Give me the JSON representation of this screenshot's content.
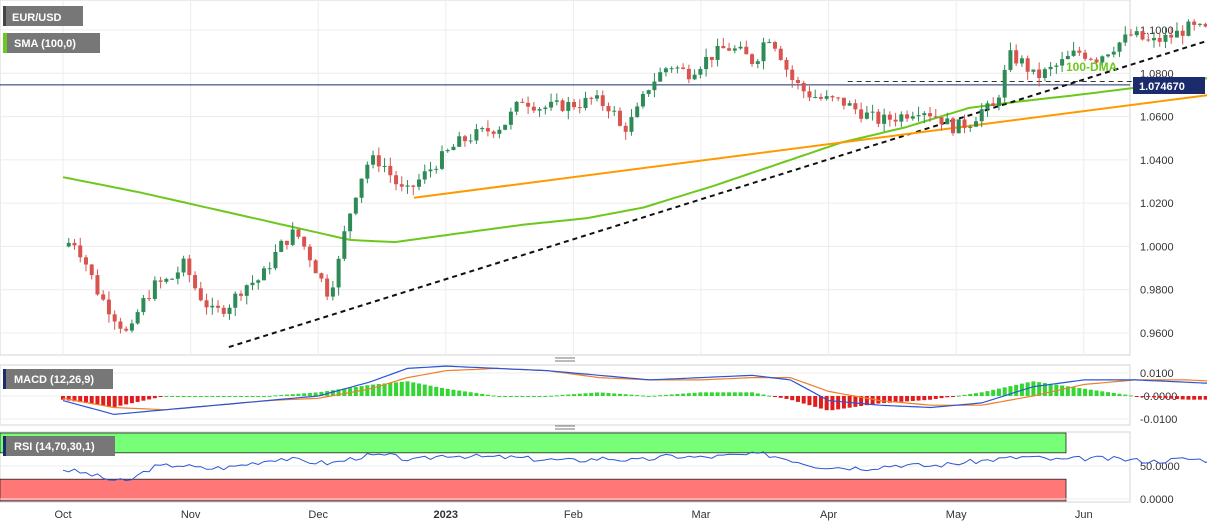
{
  "chart_data": {
    "type": "candlestick",
    "symbol": "EUR/USD",
    "last_price": "1.074670",
    "x_tick_labels": [
      "Oct",
      "Nov",
      "Dec",
      "2023",
      "Feb",
      "Mar",
      "Apr",
      "May",
      "Jun"
    ],
    "grid": true,
    "price_panel": {
      "ylim": [
        0.95,
        1.11
      ],
      "y_ticks": [
        0.96,
        0.98,
        1.0,
        1.02,
        1.04,
        1.06,
        1.08,
        1.1
      ],
      "y_tick_labels": [
        "0.9600",
        "0.9800",
        "1.0000",
        "1.0200",
        "1.0400",
        "1.0600",
        "1.0800",
        "1.1000"
      ],
      "legend": [
        {
          "label": "EUR/USD",
          "color": "#555555"
        },
        {
          "label": "SMA (100,0)",
          "color": "#6cc81c"
        }
      ],
      "annotations": [
        {
          "text": "100-DMA",
          "color": "#6cc81c"
        }
      ],
      "horizontal_line": {
        "value": 1.07467,
        "color": "#1b2b6b"
      },
      "support_level": {
        "value": 1.0762,
        "style": "dashed"
      },
      "trendlines": [
        {
          "name": "black-dashed-support",
          "style": "dashed",
          "color": "#111111",
          "from": {
            "month": 1.3,
            "value": 0.9535
          },
          "to": {
            "month": 9.05,
            "value": 1.0965
          }
        },
        {
          "name": "orange-support",
          "style": "solid",
          "color": "#ff9900",
          "from": {
            "month": 2.75,
            "value": 1.0225
          },
          "to": {
            "month": 9.05,
            "value": 1.0705
          }
        }
      ],
      "candle_colors": {
        "up": "#2e8b57",
        "down": "#d9534f"
      },
      "candles_price_path": [
        [
          0.0,
          1.0
        ],
        [
          0.08,
          1.003
        ],
        [
          0.16,
          0.995
        ],
        [
          0.28,
          0.978
        ],
        [
          0.4,
          0.968
        ],
        [
          0.52,
          0.958
        ],
        [
          0.6,
          0.972
        ],
        [
          0.72,
          0.982
        ],
        [
          0.85,
          0.985
        ],
        [
          0.95,
          0.992
        ],
        [
          1.05,
          0.979
        ],
        [
          1.18,
          0.969
        ],
        [
          1.3,
          0.973
        ],
        [
          1.42,
          0.982
        ],
        [
          1.55,
          0.985
        ],
        [
          1.7,
          1.0
        ],
        [
          1.82,
          1.007
        ],
        [
          1.92,
          0.997
        ],
        [
          2.02,
          0.985
        ],
        [
          2.08,
          0.978
        ],
        [
          2.15,
          0.99
        ],
        [
          2.22,
          1.01
        ],
        [
          2.32,
          1.03
        ],
        [
          2.4,
          1.04
        ],
        [
          2.5,
          1.039
        ],
        [
          2.6,
          1.03
        ],
        [
          2.68,
          1.024
        ],
        [
          2.78,
          1.03
        ],
        [
          2.95,
          1.04
        ],
        [
          3.1,
          1.048
        ],
        [
          3.25,
          1.052
        ],
        [
          3.45,
          1.056
        ],
        [
          3.6,
          1.068
        ],
        [
          3.75,
          1.064
        ],
        [
          3.9,
          1.065
        ],
        [
          4.05,
          1.066
        ],
        [
          4.15,
          1.068
        ],
        [
          4.3,
          1.064
        ],
        [
          4.38,
          1.053
        ],
        [
          4.48,
          1.06
        ],
        [
          4.6,
          1.075
        ],
        [
          4.75,
          1.084
        ],
        [
          4.9,
          1.08
        ],
        [
          5.05,
          1.087
        ],
        [
          5.2,
          1.092
        ],
        [
          5.3,
          1.09
        ],
        [
          5.42,
          1.085
        ],
        [
          5.52,
          1.098
        ],
        [
          5.6,
          1.092
        ],
        [
          5.7,
          1.078
        ],
        [
          5.82,
          1.071
        ],
        [
          5.95,
          1.068
        ],
        [
          6.1,
          1.067
        ],
        [
          6.25,
          1.062
        ],
        [
          6.4,
          1.058
        ],
        [
          6.55,
          1.06
        ],
        [
          6.72,
          1.064
        ],
        [
          6.85,
          1.06
        ],
        [
          6.98,
          1.055
        ],
        [
          7.1,
          1.057
        ],
        [
          7.2,
          1.063
        ],
        [
          7.3,
          1.064
        ],
        [
          7.42,
          1.088
        ],
        [
          7.52,
          1.085
        ],
        [
          7.62,
          1.078
        ],
        [
          7.78,
          1.083
        ],
        [
          7.95,
          1.09
        ],
        [
          8.1,
          1.087
        ],
        [
          8.25,
          1.093
        ],
        [
          8.38,
          1.098
        ],
        [
          8.52,
          1.094
        ],
        [
          8.68,
          1.097
        ],
        [
          8.82,
          1.101
        ],
        [
          8.95,
          1.1
        ],
        [
          9.08,
          1.095
        ],
        [
          9.2,
          1.098
        ],
        [
          9.35,
          1.094
        ],
        [
          9.5,
          1.088
        ],
        [
          9.6,
          1.085
        ],
        [
          9.72,
          1.082
        ],
        [
          9.8,
          1.077
        ],
        [
          9.88,
          1.075
        ]
      ],
      "sma_100_path": [
        [
          0.0,
          1.032
        ],
        [
          0.6,
          1.025
        ],
        [
          1.2,
          1.017
        ],
        [
          1.8,
          1.009
        ],
        [
          2.25,
          1.003
        ],
        [
          2.6,
          1.002
        ],
        [
          3.1,
          1.006
        ],
        [
          3.6,
          1.01
        ],
        [
          4.1,
          1.013
        ],
        [
          4.55,
          1.018
        ],
        [
          5.1,
          1.028
        ],
        [
          5.6,
          1.038
        ],
        [
          6.1,
          1.048
        ],
        [
          6.6,
          1.055
        ],
        [
          7.1,
          1.064
        ],
        [
          7.5,
          1.067
        ],
        [
          7.95,
          1.07
        ],
        [
          8.5,
          1.074
        ],
        [
          9.0,
          1.078
        ],
        [
          9.5,
          1.08
        ],
        [
          9.88,
          1.081
        ]
      ]
    },
    "macd_panel": {
      "name": "MACD (12,26,9)",
      "ylim": [
        -0.0125,
        0.0125
      ],
      "y_ticks": [
        0.01,
        0.0,
        -0.01
      ],
      "y_tick_labels": [
        "0.0100",
        "-0.0000",
        "-0.0100"
      ],
      "histogram_colors": {
        "positive": "#33d633",
        "negative": "#e01c1c"
      },
      "macd_path": [
        [
          0.0,
          -0.002
        ],
        [
          0.4,
          -0.008
        ],
        [
          0.8,
          -0.006
        ],
        [
          1.2,
          -0.004
        ],
        [
          1.6,
          -0.002
        ],
        [
          2.0,
          0.0
        ],
        [
          2.4,
          0.006
        ],
        [
          2.7,
          0.012
        ],
        [
          3.0,
          0.013
        ],
        [
          3.4,
          0.012
        ],
        [
          3.8,
          0.011
        ],
        [
          4.2,
          0.009
        ],
        [
          4.6,
          0.007
        ],
        [
          5.0,
          0.008
        ],
        [
          5.4,
          0.009
        ],
        [
          5.7,
          0.007
        ],
        [
          6.0,
          -0.002
        ],
        [
          6.4,
          -0.004
        ],
        [
          6.8,
          -0.005
        ],
        [
          7.2,
          -0.003
        ],
        [
          7.6,
          0.004
        ],
        [
          8.0,
          0.007
        ],
        [
          8.4,
          0.007
        ],
        [
          8.8,
          0.006
        ],
        [
          9.2,
          0.005
        ],
        [
          9.6,
          0.0
        ],
        [
          9.9,
          -0.005
        ]
      ],
      "signal_path": [
        [
          0.0,
          -0.001
        ],
        [
          0.4,
          -0.005
        ],
        [
          0.8,
          -0.006
        ],
        [
          1.2,
          -0.004
        ],
        [
          1.6,
          -0.002
        ],
        [
          2.0,
          -0.001
        ],
        [
          2.4,
          0.003
        ],
        [
          2.7,
          0.008
        ],
        [
          3.0,
          0.011
        ],
        [
          3.4,
          0.012
        ],
        [
          3.8,
          0.011
        ],
        [
          4.2,
          0.008
        ],
        [
          4.6,
          0.007
        ],
        [
          5.0,
          0.007
        ],
        [
          5.4,
          0.008
        ],
        [
          5.7,
          0.008
        ],
        [
          6.0,
          0.002
        ],
        [
          6.4,
          -0.002
        ],
        [
          6.8,
          -0.004
        ],
        [
          7.2,
          -0.004
        ],
        [
          7.6,
          0.0
        ],
        [
          8.0,
          0.005
        ],
        [
          8.4,
          0.007
        ],
        [
          8.8,
          0.007
        ],
        [
          9.2,
          0.006
        ],
        [
          9.6,
          0.003
        ],
        [
          9.9,
          -0.002
        ]
      ]
    },
    "rsi_panel": {
      "name": "RSI (14,70,30,1)",
      "ylim": [
        0,
        100
      ],
      "y_ticks": [
        50,
        0
      ],
      "y_tick_labels": [
        "50.0000",
        "0.0000"
      ],
      "overbought": 70,
      "oversold": 30,
      "zone_colors": {
        "overbought": "#77ff77",
        "oversold": "#ff7777"
      },
      "rsi_path": [
        [
          0.0,
          45
        ],
        [
          0.2,
          38
        ],
        [
          0.35,
          30
        ],
        [
          0.5,
          26
        ],
        [
          0.7,
          48
        ],
        [
          0.9,
          52
        ],
        [
          1.1,
          46
        ],
        [
          1.3,
          48
        ],
        [
          1.5,
          55
        ],
        [
          1.7,
          62
        ],
        [
          1.9,
          57
        ],
        [
          2.1,
          54
        ],
        [
          2.35,
          65
        ],
        [
          2.55,
          66
        ],
        [
          2.75,
          58
        ],
        [
          3.0,
          67
        ],
        [
          3.25,
          64
        ],
        [
          3.5,
          63
        ],
        [
          3.75,
          60
        ],
        [
          4.0,
          58
        ],
        [
          4.25,
          62
        ],
        [
          4.5,
          58
        ],
        [
          4.75,
          65
        ],
        [
          5.0,
          63
        ],
        [
          5.25,
          66
        ],
        [
          5.5,
          68
        ],
        [
          5.7,
          60
        ],
        [
          5.9,
          50
        ],
        [
          6.1,
          48
        ],
        [
          6.3,
          47
        ],
        [
          6.55,
          52
        ],
        [
          6.8,
          50
        ],
        [
          7.05,
          55
        ],
        [
          7.3,
          60
        ],
        [
          7.55,
          64
        ],
        [
          7.8,
          59
        ],
        [
          8.05,
          62
        ],
        [
          8.3,
          60
        ],
        [
          8.55,
          57
        ],
        [
          8.8,
          61
        ],
        [
          9.05,
          58
        ],
        [
          9.3,
          55
        ],
        [
          9.55,
          50
        ],
        [
          9.75,
          44
        ],
        [
          9.9,
          40
        ]
      ]
    }
  }
}
